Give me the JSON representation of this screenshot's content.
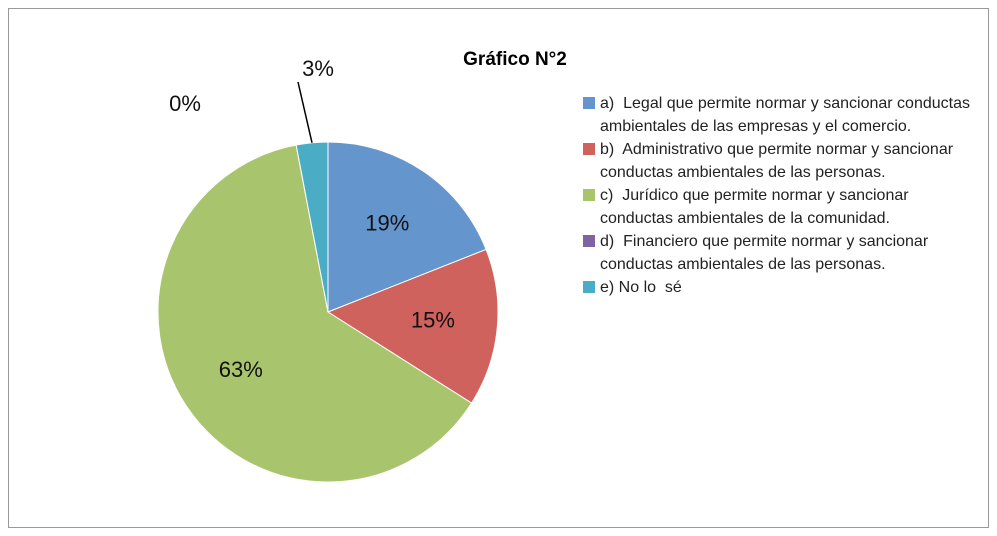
{
  "chart_data": {
    "type": "pie",
    "title": "Gráfico N°2",
    "categories": [
      "a)  Legal que permite normar y sancionar conductas ambientales de las empresas y el comercio.",
      "b)  Administrativo que permite normar y sancionar conductas ambientales de las personas.",
      "c)  Jurídico que permite normar y sancionar conductas ambientales de la comunidad.",
      "d)  Financiero que permite normar y sancionar conductas ambientales de las personas.",
      "e) No lo  sé"
    ],
    "values": [
      19,
      15,
      63,
      0,
      3
    ],
    "value_labels": [
      "19%",
      "15%",
      "63%",
      "0%",
      "3%"
    ],
    "colors": [
      "#6495cd",
      "#d0625e",
      "#a8c46c",
      "#8064a2",
      "#4bacc6"
    ],
    "legend": "right"
  }
}
